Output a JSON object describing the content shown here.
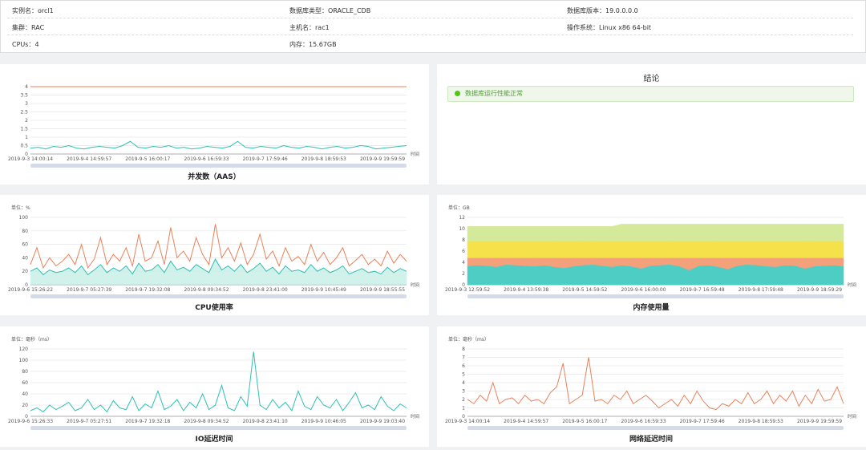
{
  "info": [
    {
      "label": "实例名：",
      "value": "orcl1"
    },
    {
      "label": "数据库类型：",
      "value": "ORACLE_CDB"
    },
    {
      "label": "数据库版本：",
      "value": "19.0.0.0.0"
    },
    {
      "label": "集群：",
      "value": "RAC"
    },
    {
      "label": "主机名：",
      "value": "rac1"
    },
    {
      "label": "操作系统：",
      "value": "Linux x86 64-bit"
    },
    {
      "label": "CPUs：",
      "value": "4"
    },
    {
      "label": "内存：",
      "value": "15.67GB"
    }
  ],
  "conclusion": {
    "title": "结论",
    "message": "数据库运行性能正常"
  },
  "charts": [
    {
      "type": "line",
      "title": "并发数（AAS）",
      "x_label": "时间",
      "ylim": [
        0,
        4
      ],
      "yticks": [
        0,
        0.5,
        1,
        1.5,
        2,
        2.5,
        3,
        3.5,
        4
      ],
      "xtick_labels": [
        "2019-9-3 14:00:14",
        "2019-9-4 14:59:57",
        "2019-9-5 16:00:17",
        "2019-9-6 16:59:33",
        "2019-9-7 17:59:46",
        "2019-9-8 18:59:53",
        "2019-9-9 19:59:59"
      ],
      "series": [
        {
          "color": "#e8825a",
          "values": [
            4,
            4,
            4,
            4,
            4,
            4,
            4,
            4,
            4,
            4,
            4,
            4,
            4,
            4,
            4,
            4,
            4,
            4,
            4,
            4,
            4,
            4,
            4,
            4,
            4,
            4,
            4,
            4,
            4,
            4,
            4,
            4,
            4,
            4,
            4,
            4,
            4,
            4,
            4,
            4,
            4,
            4,
            4,
            4,
            4,
            4,
            4,
            4,
            4,
            4
          ]
        },
        {
          "color": "#2fbfb5",
          "values": [
            0.35,
            0.4,
            0.3,
            0.45,
            0.4,
            0.5,
            0.35,
            0.3,
            0.4,
            0.45,
            0.4,
            0.35,
            0.5,
            0.75,
            0.4,
            0.35,
            0.45,
            0.4,
            0.5,
            0.35,
            0.4,
            0.3,
            0.35,
            0.45,
            0.4,
            0.35,
            0.45,
            0.75,
            0.4,
            0.35,
            0.45,
            0.4,
            0.35,
            0.5,
            0.4,
            0.35,
            0.45,
            0.4,
            0.3,
            0.4,
            0.45,
            0.35,
            0.4,
            0.5,
            0.45,
            0.3,
            0.35,
            0.4,
            0.45,
            0.5
          ]
        }
      ]
    },
    {
      "type": "line",
      "title": "CPU使用率",
      "unit": "单位：%",
      "x_label": "时间",
      "ylim": [
        0,
        100
      ],
      "yticks": [
        0,
        20,
        40,
        60,
        80,
        100
      ],
      "xtick_labels": [
        "2019-9-6 15:26:22",
        "2019-9-7 05:27:39",
        "2019-9-7 19:32:08",
        "2019-9-8 09:34:52",
        "2019-9-8 23:41:00",
        "2019-9-9 10:45:49",
        "2019-9-9 18:55:55"
      ],
      "series": [
        {
          "color": "#e8825a",
          "values": [
            30,
            55,
            25,
            40,
            28,
            35,
            45,
            30,
            60,
            25,
            38,
            70,
            30,
            45,
            35,
            55,
            28,
            75,
            35,
            40,
            65,
            30,
            85,
            40,
            50,
            35,
            70,
            45,
            30,
            90,
            40,
            55,
            35,
            62,
            30,
            45,
            75,
            38,
            50,
            28,
            55,
            35,
            42,
            30,
            60,
            35,
            48,
            30,
            40,
            55,
            28,
            36,
            45,
            30,
            38,
            28,
            50,
            32,
            45,
            35
          ]
        },
        {
          "color": "#2fbfb5",
          "fill": "#bdebe3",
          "values": [
            20,
            25,
            15,
            22,
            18,
            20,
            25,
            18,
            28,
            15,
            22,
            30,
            18,
            25,
            20,
            28,
            16,
            32,
            20,
            22,
            30,
            18,
            35,
            22,
            26,
            20,
            30,
            24,
            18,
            38,
            22,
            28,
            20,
            30,
            18,
            24,
            32,
            20,
            26,
            16,
            28,
            20,
            22,
            18,
            30,
            20,
            25,
            18,
            22,
            28,
            16,
            20,
            24,
            18,
            20,
            16,
            26,
            18,
            24,
            20
          ]
        }
      ]
    },
    {
      "type": "stacked_area",
      "title": "内存使用量",
      "unit": "单位：GB",
      "x_label": "时间",
      "ylim": [
        0,
        12
      ],
      "yticks": [
        0,
        2,
        4,
        6,
        8,
        10,
        12
      ],
      "xtick_labels": [
        "2019-9-3 12:59:52",
        "2019-9-4 13:59:38",
        "2019-9-5 14:59:52",
        "2019-9-6 16:00:00",
        "2019-9-7 16:59:48",
        "2019-9-8 17:59:48",
        "2019-9-9 18:59:29"
      ],
      "series": [
        {
          "color": "#4ecdc4",
          "values": [
            3.3,
            3.5,
            3.4,
            3.2,
            3.6,
            3.5,
            3.4,
            3.3,
            3.5,
            3.2,
            3.0,
            3.3,
            3.5,
            3.6,
            3.4,
            3.2,
            3.5,
            3.3,
            2.9,
            3.4,
            3.5,
            3.6,
            3.3,
            2.6,
            3.4,
            3.5,
            3.2,
            2.8,
            3.4,
            3.6,
            3.5,
            3.3,
            3.2,
            3.5,
            3.4,
            2.9,
            3.3,
            3.4,
            3.5,
            3.3
          ]
        },
        {
          "color": "#f4a07a",
          "values": [
            1.5,
            1.3,
            1.4,
            1.6,
            1.2,
            1.3,
            1.4,
            1.5,
            1.3,
            1.6,
            1.8,
            1.5,
            1.3,
            1.2,
            1.4,
            1.6,
            1.3,
            1.5,
            1.9,
            1.4,
            1.3,
            1.2,
            1.5,
            2.2,
            1.4,
            1.3,
            1.6,
            2.0,
            1.4,
            1.2,
            1.3,
            1.5,
            1.6,
            1.3,
            1.4,
            1.9,
            1.5,
            1.4,
            1.3,
            1.5
          ]
        },
        {
          "color": "#f5e14a",
          "values": [
            3,
            3,
            3,
            3,
            3,
            3,
            3,
            3,
            3,
            3,
            3,
            3,
            3,
            3,
            3,
            3,
            3,
            3,
            3,
            3,
            3,
            3,
            3,
            3,
            3,
            3,
            3,
            3,
            3,
            3,
            3,
            3,
            3,
            3,
            3,
            3,
            3,
            3,
            3,
            3
          ]
        },
        {
          "color": "#d4ea9a",
          "values": [
            2.6,
            2.6,
            2.6,
            2.6,
            2.6,
            2.6,
            2.6,
            2.6,
            2.6,
            2.6,
            2.6,
            2.6,
            2.6,
            2.6,
            2.6,
            2.6,
            3,
            3,
            3,
            3,
            3,
            3,
            3,
            3,
            3,
            3,
            3,
            3,
            3,
            3,
            3,
            3,
            3,
            3,
            3,
            3,
            3,
            3,
            3,
            3
          ]
        }
      ]
    },
    {
      "type": "line",
      "title": "IO延迟时间",
      "unit": "单位：毫秒（ms）",
      "x_label": "时间",
      "ylim": [
        0,
        120
      ],
      "yticks": [
        0,
        20,
        40,
        60,
        80,
        100,
        120
      ],
      "xtick_labels": [
        "2019-9-6 15:26:33",
        "2019-9-7 05:27:51",
        "2019-9-7 19:32:18",
        "2019-9-8 09:34:52",
        "2019-9-8 23:41:10",
        "2019-9-9 10:46:05",
        "2019-9-9 19:03:40"
      ],
      "series": [
        {
          "color": "#2fbfb5",
          "values": [
            10,
            15,
            8,
            20,
            12,
            18,
            25,
            10,
            15,
            30,
            12,
            20,
            8,
            28,
            15,
            12,
            35,
            10,
            22,
            15,
            45,
            12,
            18,
            30,
            10,
            25,
            15,
            40,
            12,
            20,
            55,
            15,
            10,
            35,
            18,
            115,
            20,
            12,
            30,
            15,
            25,
            10,
            45,
            18,
            12,
            35,
            20,
            15,
            30,
            10,
            25,
            42,
            15,
            20,
            12,
            35,
            18,
            10,
            22,
            15
          ]
        }
      ]
    },
    {
      "type": "line",
      "title": "网络延迟时间",
      "unit": "单位：毫秒（ms）",
      "x_label": "时间",
      "ylim": [
        0,
        8
      ],
      "yticks": [
        0,
        1,
        2,
        3,
        4,
        5,
        6,
        7,
        8
      ],
      "xtick_labels": [
        "2019-9-3 14:00:14",
        "2019-9-4 14:59:57",
        "2019-9-5 16:00:17",
        "2019-9-6 16:59:33",
        "2019-9-7 17:59:46",
        "2019-9-8 18:59:53",
        "2019-9-9 19:59:59"
      ],
      "series": [
        {
          "color": "#e8825a",
          "values": [
            2,
            1.5,
            2.5,
            1.8,
            4,
            1.5,
            2,
            2.2,
            1.5,
            2.5,
            1.8,
            2,
            1.5,
            2.8,
            3.5,
            6.3,
            1.5,
            2,
            2.5,
            7,
            1.8,
            2,
            1.5,
            2.5,
            2,
            3,
            1.5,
            2,
            2.5,
            1.8,
            1,
            1.5,
            2,
            1.2,
            2.5,
            1.5,
            3,
            1.8,
            1,
            0.8,
            1.5,
            1.2,
            2,
            1.5,
            2.8,
            1.5,
            2,
            3,
            1.5,
            2.5,
            1.8,
            3,
            1.2,
            2.5,
            1.5,
            3.2,
            1.8,
            2,
            3.5,
            1.5
          ]
        }
      ]
    }
  ]
}
